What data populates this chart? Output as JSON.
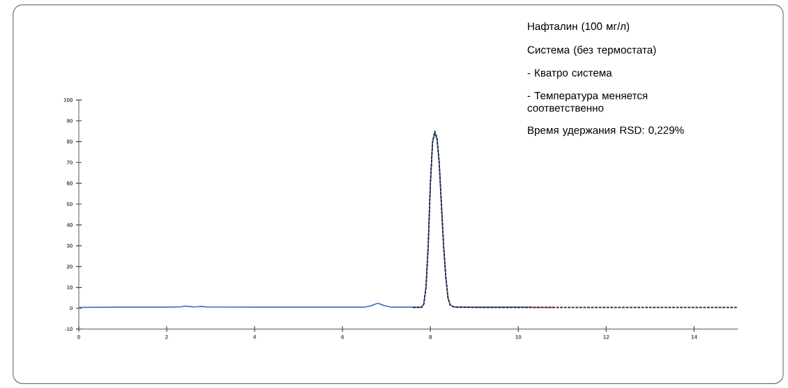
{
  "chart_data": {
    "type": "line",
    "annotations": [
      "Нафталин (100 мг/л)",
      "Система (без термостата)",
      "- Кватро система",
      "- Температура меняется соответственно",
      "Время удержания RSD: 0,229%"
    ],
    "xlim": [
      0,
      15
    ],
    "ylim": [
      -10,
      100
    ],
    "xticks": [
      0,
      2,
      4,
      6,
      8,
      10,
      12,
      14
    ],
    "yticks": [
      -10,
      0,
      10,
      20,
      30,
      40,
      50,
      60,
      70,
      80,
      90,
      100
    ],
    "grid": false,
    "series": [
      {
        "color": "#4a72c8",
        "line_style": "solid",
        "x": [
          0,
          1,
          2,
          2.3,
          2.4,
          2.5,
          2.6,
          2.7,
          2.8,
          2.9,
          4,
          5,
          6,
          6.5,
          6.65,
          6.8,
          6.95,
          7.1,
          7.8,
          7.85,
          7.9,
          7.95,
          8.0,
          8.05,
          8.1,
          8.15,
          8.2,
          8.25,
          8.3,
          8.35,
          8.4,
          8.45,
          8.55,
          9,
          10,
          10.3
        ],
        "values": [
          0.4,
          0.5,
          0.5,
          0.6,
          1.0,
          0.9,
          0.6,
          0.7,
          0.9,
          0.6,
          0.5,
          0.5,
          0.5,
          0.5,
          1.2,
          2.4,
          1.3,
          0.5,
          0.5,
          2,
          10,
          30,
          60,
          80,
          84,
          81,
          70,
          50,
          30,
          15,
          5,
          1.5,
          0.6,
          0.5,
          0.5,
          0.5
        ]
      },
      {
        "color": "#f0705a",
        "line_style": "solid",
        "x": [
          10.3,
          10.55,
          10.8
        ],
        "values": [
          0.4,
          0.4,
          0.4
        ]
      },
      {
        "color": "#222222",
        "line_style": "dashed",
        "x": [
          7.6,
          7.8,
          7.85,
          7.9,
          7.95,
          8.0,
          8.05,
          8.1,
          8.15,
          8.2,
          8.25,
          8.3,
          8.35,
          8.4,
          8.45,
          8.55,
          9,
          10,
          11,
          12,
          13,
          14,
          15
        ],
        "values": [
          0.4,
          0.4,
          2,
          10,
          30,
          60,
          80,
          85,
          82,
          70,
          50,
          30,
          15,
          5,
          1.5,
          0.5,
          0.4,
          0.4,
          0.4,
          0.4,
          0.4,
          0.4,
          0.4
        ]
      }
    ]
  }
}
